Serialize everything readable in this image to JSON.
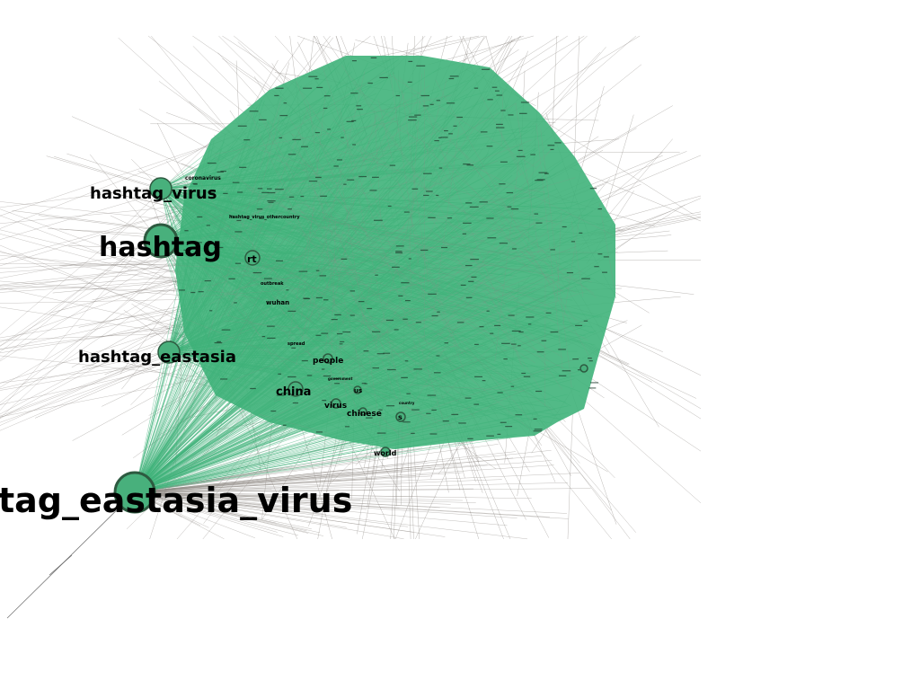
{
  "colors": {
    "background": "#ffffff",
    "node_fill": "#48b07c",
    "node_stroke": "#2d5a40",
    "edge_gray": "#8f8a85",
    "edge_green": "#3fb37a"
  },
  "nodes": [
    {
      "id": "hashtag_eastasia_virus",
      "label": "tag_eastasia_virus",
      "weight": 1.0
    },
    {
      "id": "hashtag",
      "label": "hashtag",
      "weight": 0.7
    },
    {
      "id": "hashtag_virus",
      "label": "hashtag_virus",
      "weight": 0.45
    },
    {
      "id": "hashtag_eastasia",
      "label": "hashtag_eastasia",
      "weight": 0.45
    },
    {
      "id": "china",
      "label": "china",
      "weight": 0.32
    },
    {
      "id": "rt",
      "label": "rt",
      "weight": 0.3
    },
    {
      "id": "people",
      "label": "people",
      "weight": 0.22
    },
    {
      "id": "virus",
      "label": "virus",
      "weight": 0.2
    },
    {
      "id": "chinese",
      "label": "chinese",
      "weight": 0.2
    },
    {
      "id": "world",
      "label": "world",
      "weight": 0.2
    },
    {
      "id": "wuhan",
      "label": "wuhan",
      "weight": 0.16
    },
    {
      "id": "us",
      "label": "us",
      "weight": 0.14
    },
    {
      "id": "s",
      "label": "s",
      "weight": 0.16
    },
    {
      "id": "coronavirus",
      "label": "coronavirus",
      "weight": 0.14
    },
    {
      "id": "hashtag_virus_othercountry",
      "label": "hashtag_virus_othercountry",
      "weight": 0.1
    },
    {
      "id": "outbreak",
      "label": "outbreak",
      "weight": 0.1
    },
    {
      "id": "spread",
      "label": "spread",
      "weight": 0.1
    },
    {
      "id": "government",
      "label": "government",
      "weight": 0.08
    },
    {
      "id": "country",
      "label": "country",
      "weight": 0.08
    }
  ]
}
